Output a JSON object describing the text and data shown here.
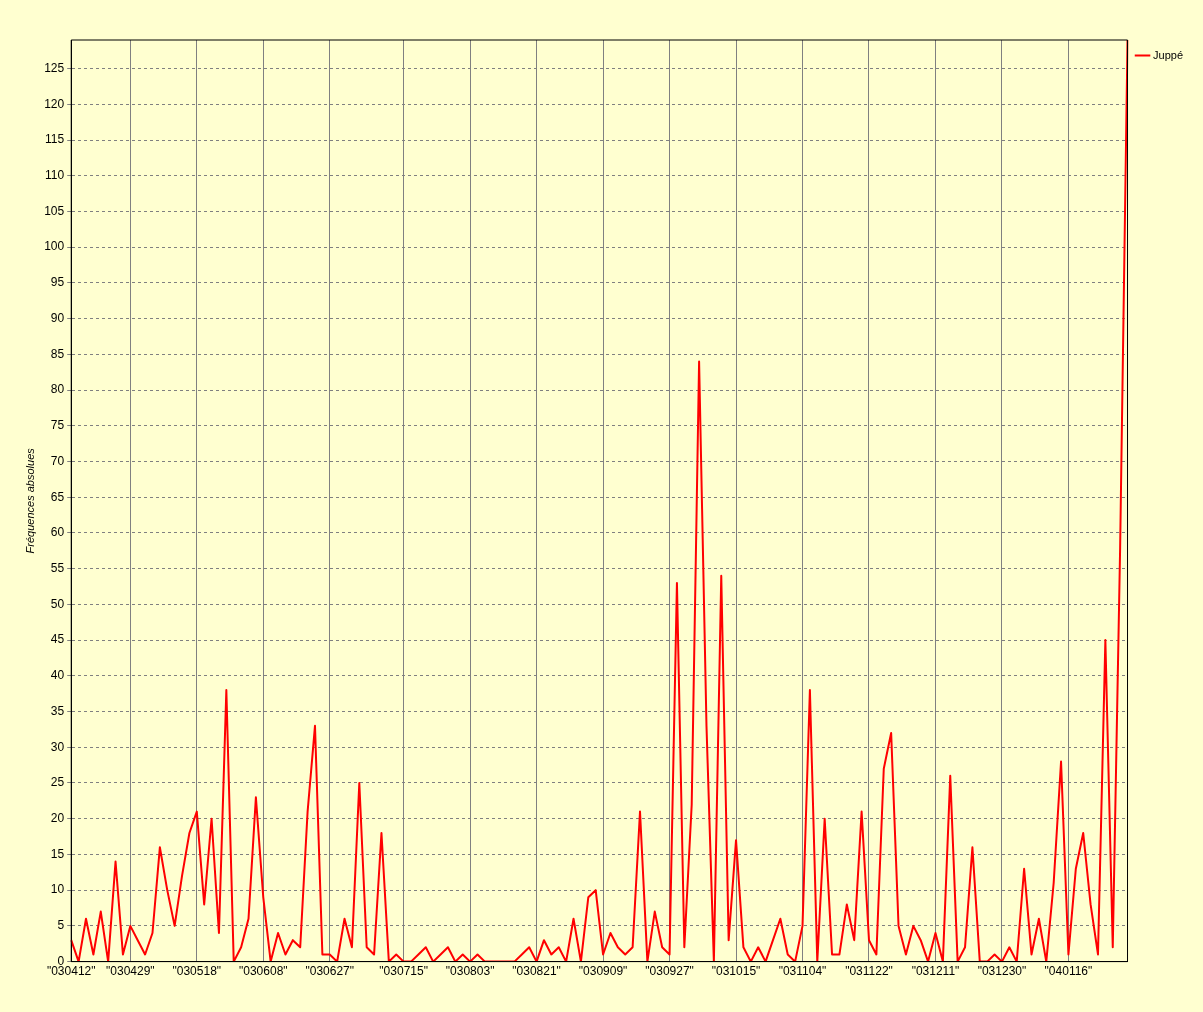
{
  "chart_data": {
    "type": "line",
    "ylabel": "Fréquences absolues",
    "categories": [
      "\"030412\"",
      null,
      null,
      null,
      null,
      null,
      null,
      null,
      "\"030429\"",
      null,
      null,
      null,
      null,
      null,
      null,
      null,
      null,
      "\"030518\"",
      null,
      null,
      null,
      null,
      null,
      null,
      null,
      null,
      "\"030608\"",
      null,
      null,
      null,
      null,
      null,
      null,
      null,
      null,
      "\"030627\"",
      null,
      null,
      null,
      null,
      null,
      null,
      null,
      null,
      null,
      "\"030715\"",
      null,
      null,
      null,
      null,
      null,
      null,
      null,
      null,
      "\"030803\"",
      null,
      null,
      null,
      null,
      null,
      null,
      null,
      null,
      "\"030821\"",
      null,
      null,
      null,
      null,
      null,
      null,
      null,
      null,
      "\"030909\"",
      null,
      null,
      null,
      null,
      null,
      null,
      null,
      null,
      "\"030927\"",
      null,
      null,
      null,
      null,
      null,
      null,
      null,
      null,
      "\"031015\"",
      null,
      null,
      null,
      null,
      null,
      null,
      null,
      null,
      "\"031104\"",
      null,
      null,
      null,
      null,
      null,
      null,
      null,
      null,
      "\"031122\"",
      null,
      null,
      null,
      null,
      null,
      null,
      null,
      null,
      "\"031211\"",
      null,
      null,
      null,
      null,
      null,
      null,
      null,
      null,
      "\"031230\"",
      null,
      null,
      null,
      null,
      null,
      null,
      null,
      null,
      "\"040116\"",
      null,
      null,
      null,
      null,
      null,
      null,
      null,
      null
    ],
    "series": [
      {
        "name": "Juppé",
        "color": "#ff0000",
        "values": [
          3,
          0,
          6,
          1,
          7,
          0,
          14,
          1,
          5,
          3,
          1,
          4,
          16,
          10,
          5,
          12,
          18,
          21,
          8,
          20,
          4,
          38,
          0,
          2,
          6,
          23,
          9,
          0,
          4,
          1,
          3,
          2,
          21,
          33,
          1,
          1,
          0,
          6,
          2,
          25,
          2,
          1,
          18,
          0,
          1,
          0,
          0,
          1,
          2,
          0,
          1,
          2,
          0,
          1,
          0,
          1,
          0,
          0,
          0,
          0,
          0,
          1,
          2,
          0,
          3,
          1,
          2,
          0,
          6,
          0,
          9,
          10,
          1,
          4,
          2,
          1,
          2,
          21,
          0,
          7,
          2,
          1,
          53,
          2,
          22,
          84,
          33,
          0,
          54,
          3,
          17,
          2,
          0,
          2,
          0,
          3,
          6,
          1,
          0,
          5,
          38,
          0,
          20,
          1,
          1,
          8,
          3,
          21,
          3,
          1,
          27,
          32,
          5,
          1,
          5,
          3,
          0,
          4,
          0,
          26,
          0,
          2,
          16,
          0,
          0,
          1,
          0,
          2,
          0,
          13,
          1,
          6,
          0,
          11,
          28,
          1,
          13,
          18,
          8,
          1,
          45,
          2,
          58,
          129
        ]
      }
    ],
    "ylim": [
      0,
      129
    ],
    "yticks": [
      0,
      5,
      10,
      15,
      20,
      25,
      30,
      35,
      40,
      45,
      50,
      55,
      60,
      65,
      70,
      75,
      80,
      85,
      90,
      95,
      100,
      105,
      110,
      115,
      120,
      125
    ],
    "grid": true,
    "legend": "right",
    "marker": "none",
    "line_style": "solid"
  }
}
